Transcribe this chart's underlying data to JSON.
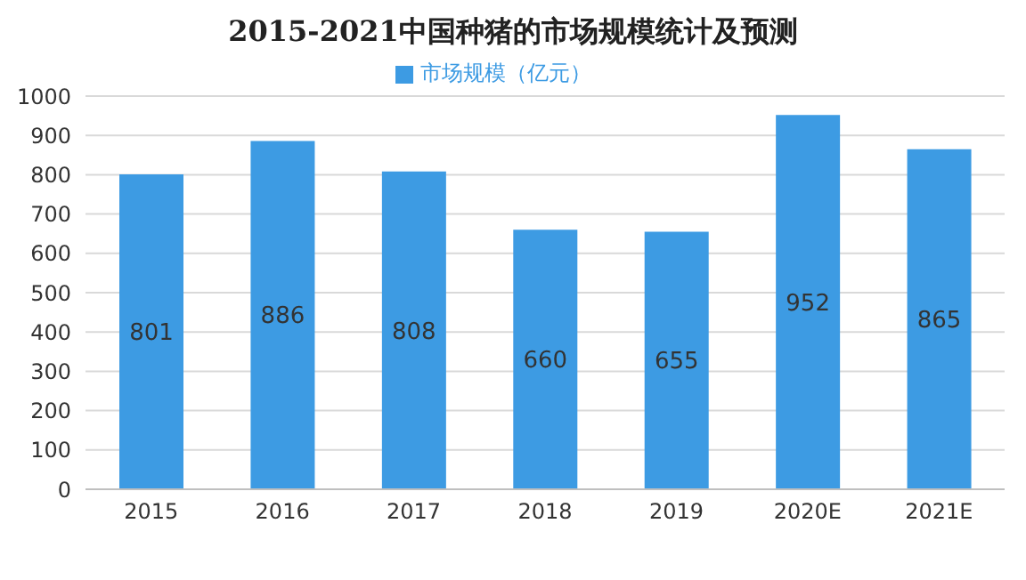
{
  "chart_data": {
    "type": "bar",
    "title": "2015-2021中国种猪的市场规模统计及预测",
    "categories": [
      "2015",
      "2016",
      "2017",
      "2018",
      "2019",
      "2020E",
      "2021E"
    ],
    "series": [
      {
        "name": "市场规模（亿元）",
        "color": "#3d9be3",
        "values": [
          801,
          886,
          808,
          660,
          655,
          952,
          865
        ]
      }
    ],
    "ylim": [
      0,
      1000
    ],
    "yticks": [
      0,
      100,
      200,
      300,
      400,
      500,
      600,
      700,
      800,
      900,
      1000
    ],
    "grid": "y",
    "legend": "top",
    "data_labels": true
  }
}
